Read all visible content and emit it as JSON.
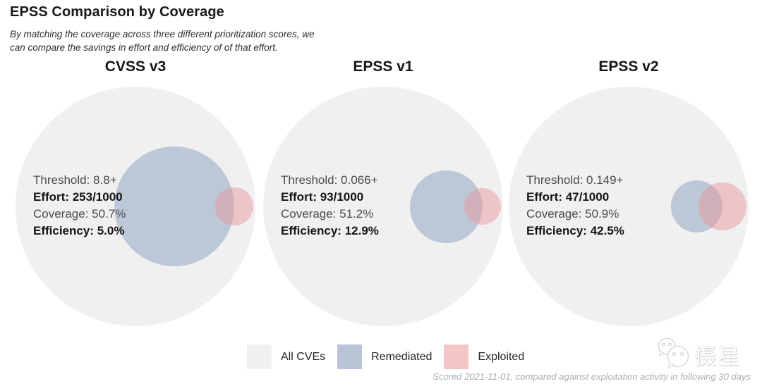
{
  "header": {
    "title": "EPSS Comparison by Coverage",
    "subtitle_line1": "By matching the coverage across three different prioritization scores, we",
    "subtitle_line2": "can compare the savings in effort and efficiency of of that effort."
  },
  "chart_data": {
    "type": "venn",
    "title": "EPSS Comparison by Coverage",
    "description": "Three Euler diagrams comparing prioritization scores; each shows All CVEs (large grey circle), Remediated (blue circle, area proportional to effort) and Exploited (pink circle) with about half of the exploited set covered",
    "stat_labels": {
      "threshold": "Threshold:",
      "effort": "Effort:",
      "coverage": "Coverage:",
      "efficiency": "Efficiency:"
    },
    "panels": [
      {
        "title": "CVSS v3",
        "threshold": "8.8+",
        "effort": "253/1000",
        "effort_count": 253,
        "total": 1000,
        "coverage": "50.7%",
        "coverage_pct": 50.7,
        "efficiency": "5.0%",
        "efficiency_pct": 5.0
      },
      {
        "title": "EPSS v1",
        "threshold": "0.066+",
        "effort": "93/1000",
        "effort_count": 93,
        "total": 1000,
        "coverage": "51.2%",
        "coverage_pct": 51.2,
        "efficiency": "12.9%",
        "efficiency_pct": 12.9
      },
      {
        "title": "EPSS v2",
        "threshold": "0.149+",
        "effort": "47/1000",
        "effort_count": 47,
        "total": 1000,
        "coverage": "50.9%",
        "coverage_pct": 50.9,
        "efficiency": "42.5%",
        "efficiency_pct": 42.5
      }
    ],
    "legend": [
      {
        "label": "All CVEs",
        "color": "#f0f0f1"
      },
      {
        "label": "Remediated",
        "color": "#b9c5d6"
      },
      {
        "label": "Exploited",
        "color": "#f3c6c7"
      }
    ],
    "colors": {
      "all_cves": "#f0f0f1",
      "remediated": "#bcc7d7",
      "exploited_overlay": "rgba(232,150,154,0.48)"
    },
    "layout_hint": "three panels side by side, legend bottom center, footnote bottom right"
  },
  "footer": {
    "note": "Scored 2021-11-01, compared against exploitation activity in following 30 days"
  },
  "watermark": {
    "icon": "wechat-icon",
    "text": "摄星"
  }
}
